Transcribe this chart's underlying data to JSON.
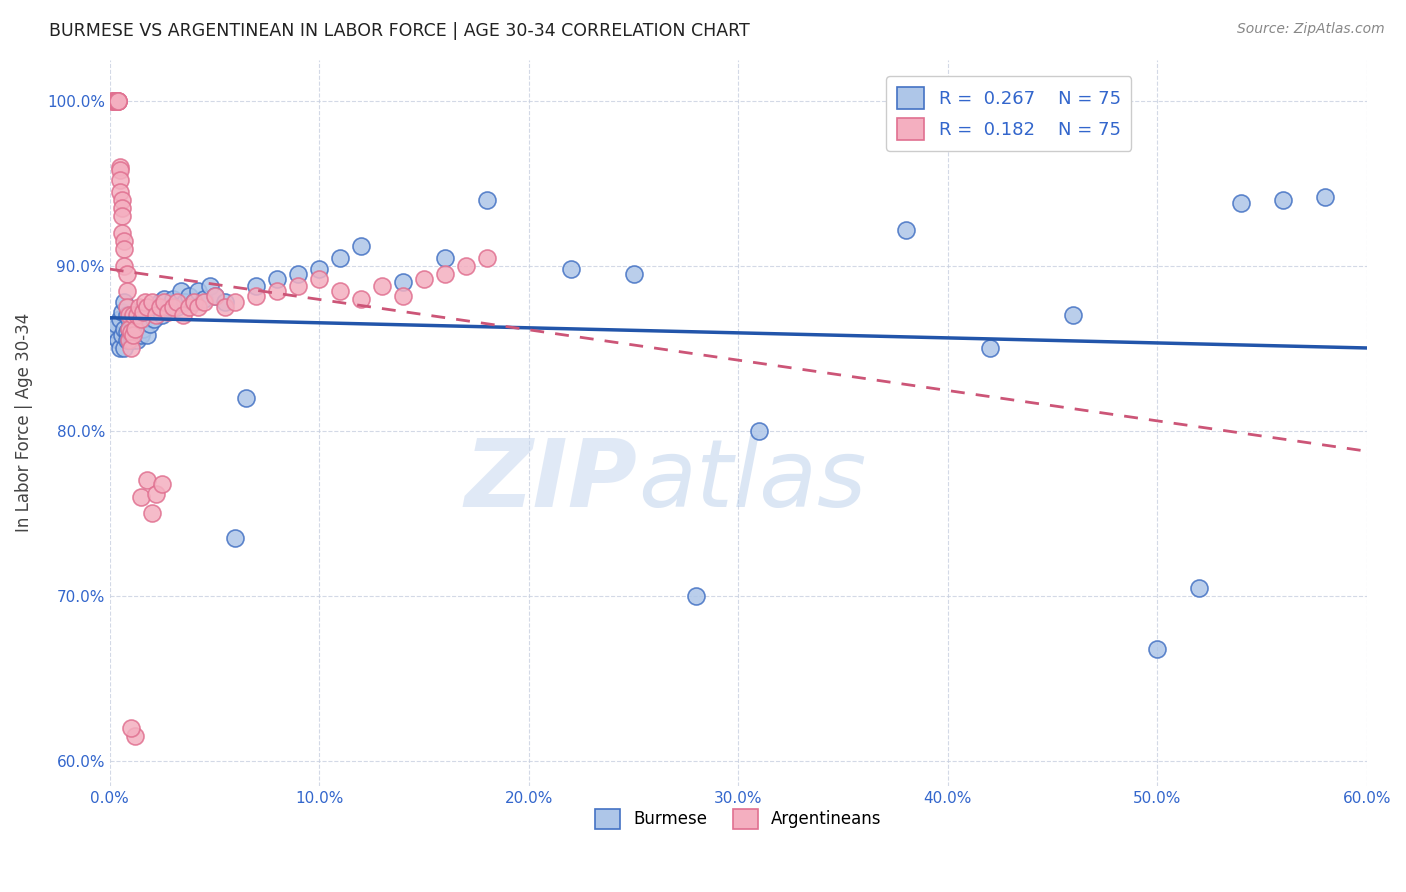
{
  "title": "BURMESE VS ARGENTINEAN IN LABOR FORCE | AGE 30-34 CORRELATION CHART",
  "source": "Source: ZipAtlas.com",
  "ylabel": "In Labor Force | Age 30-34",
  "xlim": [
    0.0,
    0.6
  ],
  "ylim": [
    0.585,
    1.025
  ],
  "xticks": [
    0.0,
    0.1,
    0.2,
    0.3,
    0.4,
    0.5,
    0.6
  ],
  "yticks": [
    0.6,
    0.7,
    0.8,
    0.9,
    1.0
  ],
  "ytick_labels": [
    "60.0%",
    "70.0%",
    "80.0%",
    "90.0%",
    "100.0%"
  ],
  "xtick_labels": [
    "0.0%",
    "10.0%",
    "20.0%",
    "30.0%",
    "40.0%",
    "50.0%",
    "60.0%"
  ],
  "burmese_color": "#aec6e8",
  "argentinean_color": "#f4afc0",
  "burmese_edge_color": "#4472c4",
  "argentinean_edge_color": "#e07090",
  "burmese_line_color": "#2255aa",
  "argentinean_line_color": "#cc5577",
  "watermark": "ZIPatlas",
  "burmese_x": [
    0.001,
    0.002,
    0.003,
    0.004,
    0.005,
    0.005,
    0.006,
    0.006,
    0.007,
    0.007,
    0.007,
    0.008,
    0.008,
    0.008,
    0.009,
    0.009,
    0.009,
    0.01,
    0.01,
    0.01,
    0.01,
    0.011,
    0.011,
    0.012,
    0.012,
    0.013,
    0.013,
    0.014,
    0.015,
    0.015,
    0.016,
    0.017,
    0.018,
    0.019,
    0.02,
    0.021,
    0.022,
    0.024,
    0.025,
    0.026,
    0.028,
    0.03,
    0.032,
    0.034,
    0.036,
    0.038,
    0.04,
    0.042,
    0.045,
    0.048,
    0.05,
    0.055,
    0.06,
    0.065,
    0.07,
    0.08,
    0.09,
    0.1,
    0.11,
    0.12,
    0.14,
    0.16,
    0.18,
    0.22,
    0.25,
    0.28,
    0.31,
    0.38,
    0.42,
    0.46,
    0.5,
    0.52,
    0.54,
    0.56,
    0.58
  ],
  "burmese_y": [
    0.858,
    0.862,
    0.865,
    0.855,
    0.85,
    0.868,
    0.858,
    0.872,
    0.862,
    0.85,
    0.878,
    0.86,
    0.855,
    0.87,
    0.862,
    0.855,
    0.868,
    0.86,
    0.855,
    0.87,
    0.858,
    0.865,
    0.855,
    0.87,
    0.858,
    0.862,
    0.855,
    0.868,
    0.872,
    0.858,
    0.862,
    0.87,
    0.858,
    0.865,
    0.872,
    0.868,
    0.875,
    0.878,
    0.87,
    0.88,
    0.875,
    0.88,
    0.875,
    0.885,
    0.878,
    0.882,
    0.878,
    0.885,
    0.88,
    0.888,
    0.882,
    0.878,
    0.735,
    0.82,
    0.888,
    0.892,
    0.895,
    0.898,
    0.905,
    0.912,
    0.89,
    0.905,
    0.94,
    0.898,
    0.895,
    0.7,
    0.8,
    0.922,
    0.85,
    0.87,
    0.668,
    0.705,
    0.938,
    0.94,
    0.942
  ],
  "argentinean_x": [
    0.001,
    0.001,
    0.002,
    0.002,
    0.003,
    0.003,
    0.003,
    0.003,
    0.003,
    0.004,
    0.004,
    0.004,
    0.004,
    0.005,
    0.005,
    0.005,
    0.005,
    0.006,
    0.006,
    0.006,
    0.006,
    0.007,
    0.007,
    0.007,
    0.008,
    0.008,
    0.008,
    0.009,
    0.009,
    0.009,
    0.01,
    0.01,
    0.011,
    0.011,
    0.012,
    0.013,
    0.014,
    0.015,
    0.016,
    0.017,
    0.018,
    0.02,
    0.022,
    0.024,
    0.026,
    0.028,
    0.03,
    0.032,
    0.035,
    0.038,
    0.04,
    0.042,
    0.045,
    0.05,
    0.055,
    0.06,
    0.07,
    0.08,
    0.09,
    0.1,
    0.11,
    0.12,
    0.13,
    0.14,
    0.15,
    0.16,
    0.17,
    0.18,
    0.015,
    0.018,
    0.02,
    0.022,
    0.025,
    0.012,
    0.01
  ],
  "argentinean_y": [
    1.0,
    1.0,
    1.0,
    1.0,
    1.0,
    1.0,
    1.0,
    1.0,
    1.0,
    1.0,
    1.0,
    1.0,
    1.0,
    0.96,
    0.958,
    0.952,
    0.945,
    0.94,
    0.935,
    0.93,
    0.92,
    0.915,
    0.91,
    0.9,
    0.895,
    0.885,
    0.875,
    0.87,
    0.862,
    0.855,
    0.86,
    0.85,
    0.87,
    0.858,
    0.862,
    0.87,
    0.875,
    0.868,
    0.872,
    0.878,
    0.875,
    0.878,
    0.87,
    0.875,
    0.878,
    0.872,
    0.875,
    0.878,
    0.87,
    0.875,
    0.878,
    0.875,
    0.878,
    0.882,
    0.875,
    0.878,
    0.882,
    0.885,
    0.888,
    0.892,
    0.885,
    0.88,
    0.888,
    0.882,
    0.892,
    0.895,
    0.9,
    0.905,
    0.76,
    0.77,
    0.75,
    0.762,
    0.768,
    0.615,
    0.62
  ]
}
